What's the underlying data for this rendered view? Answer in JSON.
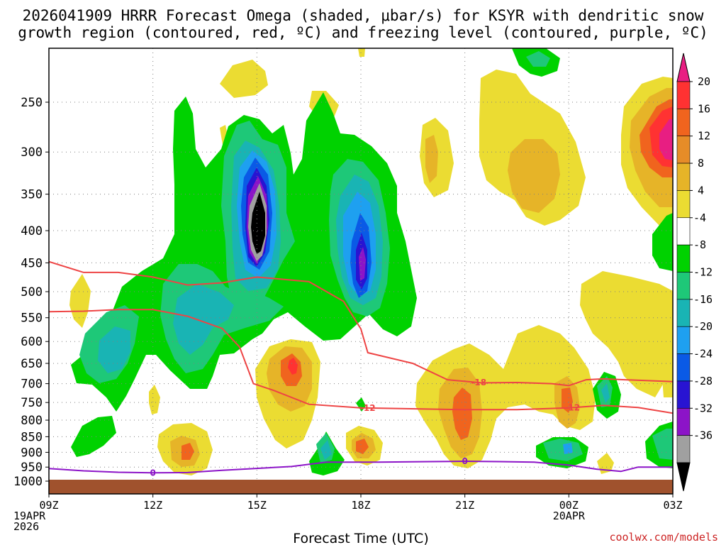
{
  "chart_data": {
    "type": "contour",
    "title_line1": "2026041909 HRRR Forecast Omega (shaded, μbar/s) for KSYR with dendritic snow",
    "title_line2": "growth region (contoured, red, ºC) and freezing level (contoured, purple, ºC)",
    "xlabel": "Forecast Time (UTC)",
    "credit": "coolwx.com/models",
    "x_ticks": [
      {
        "hour": 0,
        "lines": [
          "09Z",
          "19APR",
          "2026"
        ]
      },
      {
        "hour": 3,
        "lines": [
          "12Z"
        ]
      },
      {
        "hour": 6,
        "lines": [
          "15Z"
        ]
      },
      {
        "hour": 9,
        "lines": [
          "18Z"
        ]
      },
      {
        "hour": 12,
        "lines": [
          "21Z"
        ]
      },
      {
        "hour": 15,
        "lines": [
          "00Z",
          "20APR"
        ]
      },
      {
        "hour": 18,
        "lines": [
          "03Z"
        ]
      }
    ],
    "x_range_hours": [
      0,
      18
    ],
    "y_axis": "pressure (hPa), log scale",
    "y_range": [
      1040,
      200
    ],
    "y_ticks": [
      250,
      300,
      350,
      400,
      450,
      500,
      550,
      600,
      650,
      700,
      750,
      800,
      850,
      900,
      950,
      1000
    ],
    "colorbar": {
      "labels": [
        20,
        16,
        12,
        8,
        4,
        -4,
        -8,
        -12,
        -16,
        -20,
        -24,
        -28,
        -32,
        -36
      ],
      "colors": [
        "#e81e82",
        "#ff3232",
        "#f0641e",
        "#e68c28",
        "#e6b428",
        "#ebdc32",
        "#ffffff",
        "#00d200",
        "#1ec878",
        "#19b4b4",
        "#1ea0f0",
        "#0a5ae6",
        "#2814d2",
        "#8c14c8",
        "#a0a0a0",
        "#000000"
      ]
    },
    "surface_pressure_hpa": 1000,
    "dendritic_isotherms": [
      {
        "label": "-12",
        "points": [
          [
            0,
            538
          ],
          [
            1,
            537
          ],
          [
            2,
            534
          ],
          [
            3,
            534
          ],
          [
            4,
            547
          ],
          [
            5,
            572
          ],
          [
            5.5,
            612
          ],
          [
            5.9,
            700
          ],
          [
            6.5,
            718
          ],
          [
            7.5,
            755
          ],
          [
            9,
            765
          ],
          [
            12,
            770
          ],
          [
            13.5,
            770
          ],
          [
            15,
            765
          ],
          [
            16,
            758
          ],
          [
            17,
            764
          ],
          [
            18,
            780
          ]
        ]
      },
      {
        "label": "-18",
        "points": [
          [
            0,
            448
          ],
          [
            1,
            466
          ],
          [
            2,
            466
          ],
          [
            3,
            474
          ],
          [
            4,
            488
          ],
          [
            5,
            484
          ],
          [
            6,
            474
          ],
          [
            7.5,
            482
          ],
          [
            8.5,
            518
          ],
          [
            9,
            573
          ],
          [
            9.2,
            625
          ],
          [
            10.5,
            650
          ],
          [
            11.5,
            690
          ],
          [
            12.5,
            698
          ],
          [
            13.5,
            697
          ],
          [
            14.5,
            700
          ],
          [
            15,
            705
          ],
          [
            15.5,
            690
          ],
          [
            16,
            688
          ],
          [
            18,
            695
          ]
        ]
      }
    ],
    "freezing_level": {
      "label": "0",
      "points": [
        [
          0,
          955
        ],
        [
          1,
          963
        ],
        [
          2,
          968
        ],
        [
          3,
          970
        ],
        [
          4,
          969
        ],
        [
          5,
          961
        ],
        [
          7,
          948
        ],
        [
          8,
          933
        ],
        [
          9.5,
          933
        ],
        [
          11,
          931
        ],
        [
          12,
          930
        ],
        [
          13,
          931
        ],
        [
          14,
          933
        ],
        [
          15,
          943
        ],
        [
          15.8,
          957
        ],
        [
          16.5,
          965
        ],
        [
          17,
          950
        ],
        [
          18,
          950
        ]
      ]
    }
  }
}
